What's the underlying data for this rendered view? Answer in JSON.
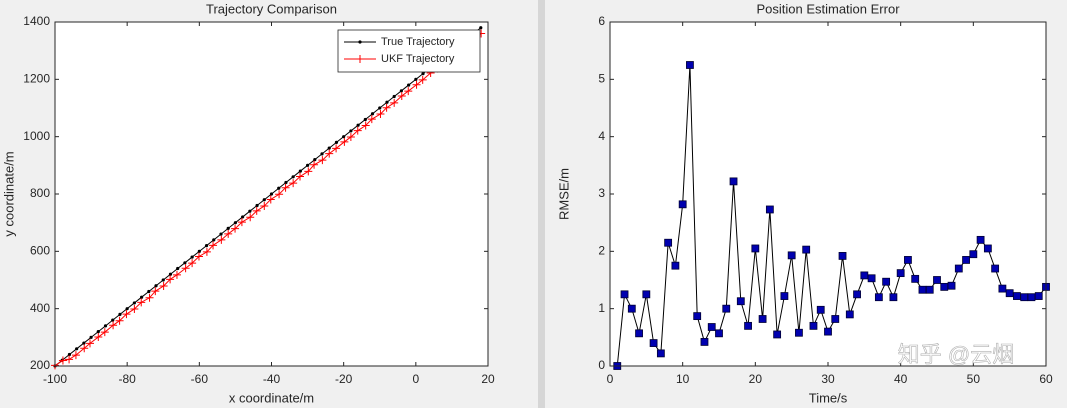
{
  "chart_data": [
    {
      "type": "line",
      "title": "Trajectory Comparison",
      "x_label": "x coordinate/m",
      "y_label": "y coordinate/m",
      "xlim": [
        -100,
        20
      ],
      "xticks": [
        -100,
        -80,
        -60,
        -40,
        -20,
        0,
        20
      ],
      "ylim": [
        200,
        1400
      ],
      "yticks": [
        200,
        400,
        600,
        800,
        1000,
        1200,
        1400
      ],
      "legend": "upper right",
      "series": [
        {
          "name": "True Trajectory",
          "color": "#000000",
          "marker": "dot",
          "x": [
            -100,
            -98,
            -96,
            -94,
            -92,
            -90,
            -88,
            -86,
            -84,
            -82,
            -80,
            -78,
            -76,
            -74,
            -72,
            -70,
            -68,
            -66,
            -64,
            -62,
            -60,
            -58,
            -56,
            -54,
            -52,
            -50,
            -48,
            -46,
            -44,
            -42,
            -40,
            -38,
            -36,
            -34,
            -32,
            -30,
            -28,
            -26,
            -24,
            -22,
            -20,
            -18,
            -16,
            -14,
            -12,
            -10,
            -8,
            -6,
            -4,
            -2,
            0,
            2,
            4,
            6,
            8,
            10,
            12,
            14,
            16,
            18
          ],
          "values": [
            200,
            220,
            240,
            260,
            280,
            300,
            320,
            340,
            360,
            380,
            400,
            420,
            440,
            460,
            480,
            500,
            520,
            540,
            560,
            580,
            600,
            620,
            640,
            660,
            680,
            700,
            720,
            740,
            760,
            780,
            800,
            820,
            840,
            860,
            880,
            900,
            920,
            940,
            960,
            980,
            1000,
            1020,
            1040,
            1060,
            1080,
            1100,
            1120,
            1140,
            1160,
            1180,
            1200,
            1220,
            1240,
            1260,
            1280,
            1300,
            1320,
            1340,
            1360,
            1380
          ]
        },
        {
          "name": "UKF Trajectory",
          "color": "#ff0000",
          "marker": "plus",
          "x": [
            -100,
            -97.8,
            -96.1,
            -94.2,
            -91.9,
            -90.3,
            -88.0,
            -86.2,
            -83.9,
            -82.1,
            -80.2,
            -78.0,
            -76.1,
            -73.8,
            -72.2,
            -69.9,
            -68.1,
            -66.2,
            -63.8,
            -62.0,
            -60.1,
            -57.9,
            -56.2,
            -53.9,
            -52.0,
            -50.1,
            -48.2,
            -45.9,
            -44.1,
            -42.0,
            -40.2,
            -37.9,
            -36.1,
            -34.0,
            -32.1,
            -29.8,
            -28.2,
            -25.9,
            -24.0,
            -22.1,
            -19.8,
            -18.0,
            -16.1,
            -13.9,
            -12.2,
            -9.8,
            -8.1,
            -6.0,
            -3.9,
            -2.1,
            0.2,
            1.9,
            4.1,
            6.0,
            7.8,
            10.1,
            11.9,
            14.0,
            16.2,
            18.1
          ],
          "values": [
            202,
            219,
            223,
            238,
            262,
            279,
            301,
            318,
            342,
            358,
            381,
            399,
            422,
            438,
            461,
            479,
            502,
            518,
            541,
            559,
            582,
            598,
            621,
            640,
            661,
            679,
            702,
            719,
            741,
            758,
            781,
            799,
            822,
            838,
            861,
            879,
            902,
            918,
            941,
            959,
            982,
            999,
            1021,
            1039,
            1061,
            1079,
            1101,
            1118,
            1142,
            1159,
            1181,
            1198,
            1222,
            1238,
            1262,
            1279,
            1301,
            1319,
            1341,
            1360
          ]
        }
      ]
    },
    {
      "type": "line",
      "title": "Position Estimation Error",
      "x_label": "Time/s",
      "y_label": "RMSE/m",
      "xlim": [
        0,
        60
      ],
      "xticks": [
        0,
        10,
        20,
        30,
        40,
        50,
        60
      ],
      "ylim": [
        0,
        6
      ],
      "yticks": [
        0,
        1,
        2,
        3,
        4,
        5,
        6
      ],
      "x": [
        1,
        2,
        3,
        4,
        5,
        6,
        7,
        8,
        9,
        10,
        11,
        12,
        13,
        14,
        15,
        16,
        17,
        18,
        19,
        20,
        21,
        22,
        23,
        24,
        25,
        26,
        27,
        28,
        29,
        30,
        31,
        32,
        33,
        34,
        35,
        36,
        37,
        38,
        39,
        40,
        41,
        42,
        43,
        44,
        45,
        46,
        47,
        48,
        49,
        50,
        51,
        52,
        53,
        54,
        55,
        56,
        57,
        58,
        59,
        60
      ],
      "series": [
        {
          "color": "#000000",
          "marker": "square",
          "marker_color": "#0000b0",
          "values": [
            0,
            1.25,
            1.0,
            0.57,
            1.25,
            0.4,
            0.22,
            2.15,
            1.75,
            2.82,
            5.25,
            0.87,
            0.42,
            0.68,
            0.57,
            1.0,
            3.22,
            1.13,
            0.7,
            2.05,
            0.82,
            2.73,
            0.55,
            1.22,
            1.93,
            0.58,
            2.03,
            0.7,
            0.98,
            0.6,
            0.82,
            1.92,
            0.9,
            1.25,
            1.58,
            1.53,
            1.2,
            1.47,
            1.2,
            1.62,
            1.85,
            1.52,
            1.33,
            1.33,
            1.5,
            1.38,
            1.4,
            1.7,
            1.85,
            1.95,
            2.2,
            2.05,
            1.7,
            1.35,
            1.27,
            1.22,
            1.2,
            1.2,
            1.22,
            1.38
          ]
        }
      ]
    }
  ],
  "watermark": "知乎 @云烟"
}
